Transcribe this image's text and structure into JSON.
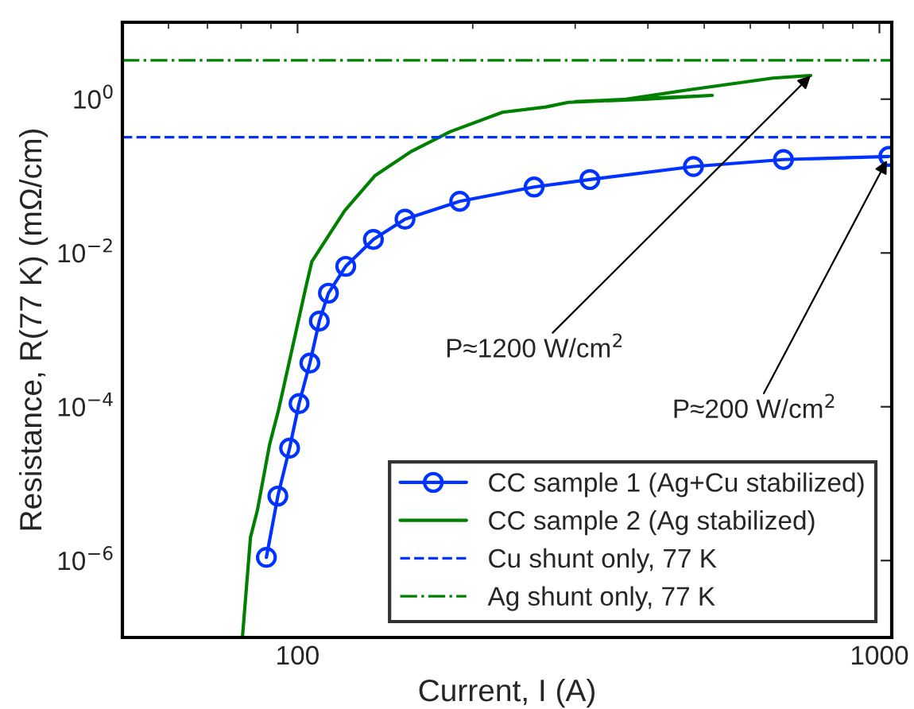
{
  "chart_data": {
    "type": "line",
    "xlabel": "Current, I (A)",
    "ylabel": "Resistance, R(77 K) (mΩ/cm)",
    "log": "xy",
    "xlim": [
      50,
      1050
    ],
    "ylim": [
      1e-07,
      10
    ],
    "xticks": [
      100,
      1000
    ],
    "yticks": [
      {
        "value": 1e-06,
        "label": "10$^{−6}$"
      },
      {
        "value": 0.0001,
        "label": "10$^{−4}$"
      },
      {
        "value": 0.01,
        "label": "10$^{−2}$"
      },
      {
        "value": 1,
        "label": "10$^{0}$"
      }
    ],
    "grid": false,
    "legend": "bottom right",
    "series": [
      {
        "name": "CC sample 1 (Ag+Cu stabilized)",
        "color": "#0033ff",
        "marker": "circle",
        "line_style": "solid",
        "x": [
          88.4,
          92.5,
          96.9,
          100.6,
          105,
          109,
          113,
          121,
          135,
          153,
          190,
          255,
          318,
          479,
          684,
          1038
        ],
        "values": [
          1.1e-06,
          6.9e-06,
          2.9e-05,
          0.00011,
          0.00037,
          0.0013,
          0.003,
          0.0067,
          0.015,
          0.0275,
          0.047,
          0.072,
          0.09,
          0.133,
          0.164,
          0.18
        ]
      },
      {
        "name": "CC sample 2 (Ag stabilized)",
        "color": "#008000",
        "marker": "none",
        "line_style": "solid",
        "x": [
          80.4,
          83,
          85.3,
          89.5,
          92.7,
          103.6,
          105.8,
          120.5,
          136,
          157,
          183,
          225,
          267,
          292,
          400,
          516,
          300,
          365,
          460,
          656,
          762
        ],
        "values": [
          1e-07,
          2e-06,
          4.5e-06,
          3.2e-05,
          8.9e-05,
          0.0039,
          0.0077,
          0.0355,
          0.102,
          0.21,
          0.378,
          0.676,
          0.79,
          0.91,
          1.0,
          1.12,
          0.93,
          0.99,
          1.29,
          1.88,
          2.03
        ]
      }
    ],
    "ref_lines": [
      {
        "axis": "y",
        "value": 0.32,
        "label": "Cu shunt only, 77 K",
        "color": "#0033ff",
        "line_style": "dashed"
      },
      {
        "axis": "y",
        "value": 3.2,
        "label": "Ag shunt only, 77 K",
        "color": "#008000",
        "line_style": "dashdot"
      }
    ],
    "annotations": [
      {
        "text": "P≈1200 W/cm$^{2}$",
        "x": 762,
        "y": 2.03
      },
      {
        "text": "P≈200 W/cm$^{2}$",
        "x": 1030,
        "y": 0.16
      }
    ]
  }
}
